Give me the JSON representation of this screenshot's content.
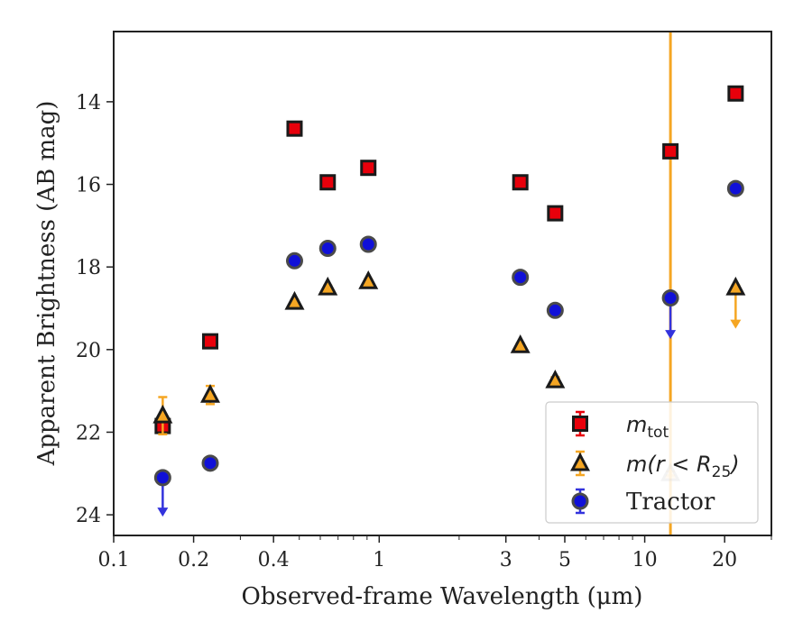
{
  "chart_data": {
    "type": "scatter",
    "xscale": "log",
    "yaxis_inverted": true,
    "xlim": [
      0.1,
      30
    ],
    "ylim": [
      24.5,
      12.3
    ],
    "xlabel": "Observed-frame Wavelength (μm)",
    "ylabel": "Apparent Brightness (AB mag)",
    "xticks": [
      {
        "value": 0.1,
        "label": "0.1"
      },
      {
        "value": 0.2,
        "label": "0.2"
      },
      {
        "value": 0.4,
        "label": "0.4"
      },
      {
        "value": 1,
        "label": "1"
      },
      {
        "value": 3,
        "label": "3"
      },
      {
        "value": 5,
        "label": "5"
      },
      {
        "value": 10,
        "label": "10"
      },
      {
        "value": 20,
        "label": "20"
      }
    ],
    "xminor": [
      0.3,
      0.5,
      0.6,
      0.7,
      0.8,
      0.9,
      2,
      4,
      6,
      7,
      8,
      9,
      30
    ],
    "yticks": [
      {
        "value": 14,
        "label": "14"
      },
      {
        "value": 16,
        "label": "16"
      },
      {
        "value": 18,
        "label": "18"
      },
      {
        "value": 20,
        "label": "20"
      },
      {
        "value": 22,
        "label": "22"
      },
      {
        "value": 24,
        "label": "24"
      }
    ],
    "vline": {
      "x": 12.5,
      "color": "#f5a623"
    },
    "legend": {
      "placement": "lower right"
    },
    "series": [
      {
        "name": "m_tot",
        "legend_main": "m",
        "legend_sub": "tot",
        "marker": "square",
        "fill": "#e8000b",
        "edge": "#1a1a1a",
        "errcolor": "#e8000b",
        "points": [
          {
            "x": 0.153,
            "y": 21.85,
            "err": 0.1
          },
          {
            "x": 0.231,
            "y": 19.8,
            "err": 0.05
          },
          {
            "x": 0.48,
            "y": 14.65,
            "err": 0.03
          },
          {
            "x": 0.64,
            "y": 15.95,
            "err": 0.03
          },
          {
            "x": 0.91,
            "y": 15.6,
            "err": 0.03
          },
          {
            "x": 3.4,
            "y": 15.95,
            "err": 0.03
          },
          {
            "x": 4.6,
            "y": 16.7,
            "err": 0.03
          },
          {
            "x": 12.5,
            "y": 15.2,
            "err": 0.03
          },
          {
            "x": 22.0,
            "y": 13.8,
            "err": 0.03
          }
        ]
      },
      {
        "name": "m(r<R25)",
        "legend_main": "m(r < R",
        "legend_sub": "25",
        "legend_close": ")",
        "marker": "triangle",
        "fill": "#f5a623",
        "edge": "#1a1a1a",
        "errcolor": "#f5a623",
        "points": [
          {
            "x": 0.153,
            "y": 21.6,
            "err": 0.45
          },
          {
            "x": 0.231,
            "y": 21.1,
            "err": 0.22
          },
          {
            "x": 0.48,
            "y": 18.85,
            "err": 0.05
          },
          {
            "x": 0.64,
            "y": 18.5,
            "err": 0.05
          },
          {
            "x": 0.91,
            "y": 18.35,
            "err": 0.05
          },
          {
            "x": 3.4,
            "y": 19.9,
            "err": 0.05
          },
          {
            "x": 4.6,
            "y": 20.75,
            "err": 0.08
          },
          {
            "x": 12.5,
            "y": 23.0,
            "err": 0.05,
            "faded": true
          },
          {
            "x": 22.0,
            "y": 18.5,
            "err": 0.05,
            "upper_limit": true,
            "arrow_to": 19.45
          }
        ]
      },
      {
        "name": "Tractor",
        "legend_main": "Tractor",
        "marker": "circle",
        "fill": "#1010d8",
        "edge": "#4a4a4a",
        "errcolor": "#3333dd",
        "points": [
          {
            "x": 0.153,
            "y": 23.1,
            "err": 0.05,
            "upper_limit": true,
            "arrow_to": 24.0
          },
          {
            "x": 0.231,
            "y": 22.75,
            "err": 0.05
          },
          {
            "x": 0.48,
            "y": 17.85,
            "err": 0.05
          },
          {
            "x": 0.64,
            "y": 17.55,
            "err": 0.05
          },
          {
            "x": 0.91,
            "y": 17.45,
            "err": 0.05
          },
          {
            "x": 3.4,
            "y": 18.25,
            "err": 0.05
          },
          {
            "x": 4.6,
            "y": 19.05,
            "err": 0.05
          },
          {
            "x": 12.5,
            "y": 18.75,
            "err": 0.05,
            "upper_limit": true,
            "arrow_to": 19.7
          },
          {
            "x": 22.0,
            "y": 16.1,
            "err": 0.05
          }
        ]
      }
    ]
  }
}
